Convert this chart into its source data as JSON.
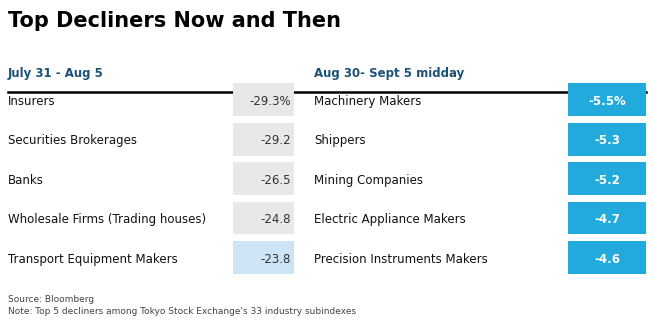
{
  "title": "Top Decliners Now and Then",
  "col1_header": "July 31 - Aug 5",
  "col2_header": "Aug 30- Sept 5 midday",
  "left_rows": [
    {
      "label": "Insurers",
      "value": "-29.3%"
    },
    {
      "label": "Securities Brokerages",
      "value": "-29.2"
    },
    {
      "label": "Banks",
      "value": "-26.5"
    },
    {
      "label": "Wholesale Firms (Trading houses)",
      "value": "-24.8"
    },
    {
      "label": "Transport Equipment Makers",
      "value": "-23.8"
    }
  ],
  "right_rows": [
    {
      "label": "Machinery Makers",
      "value": "-5.5%"
    },
    {
      "label": "Shippers",
      "value": "-5.3"
    },
    {
      "label": "Mining Companies",
      "value": "-5.2"
    },
    {
      "label": "Electric Appliance Makers",
      "value": "-4.7"
    },
    {
      "label": "Precision Instruments Makers",
      "value": "-4.6"
    }
  ],
  "left_value_bg_colors": [
    "#e8e8e8",
    "#e8e8e8",
    "#e8e8e8",
    "#e8e8e8",
    "#cce4f5"
  ],
  "right_value_bg_color": "#22aadd",
  "right_value_text_color": "#ffffff",
  "left_value_text_color": "#333333",
  "header_color": "#1a5276",
  "source_text": "Source: Bloomberg\nNote: Top 5 decliners among Tokyo Stock Exchange's 33 industry subindexes",
  "bg_color": "#ffffff",
  "title_color": "#000000",
  "header_line_color": "#000000"
}
